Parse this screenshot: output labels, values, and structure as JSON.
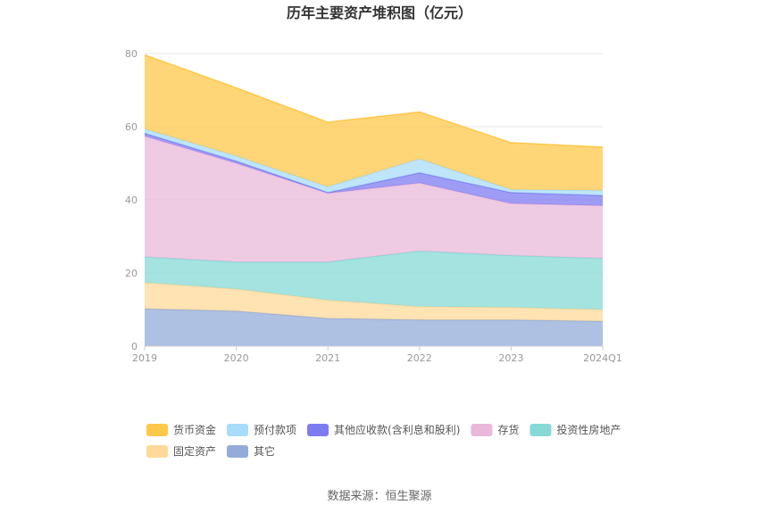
{
  "chart_data": {
    "type": "area",
    "stacked": true,
    "title": "历年主要资产堆积图（亿元）",
    "source": "数据来源：恒生聚源",
    "categories": [
      "2019",
      "2020",
      "2021",
      "2022",
      "2023",
      "2024Q1"
    ],
    "ylim": [
      0,
      80
    ],
    "yticks": [
      "0",
      "20",
      "40",
      "60",
      "80"
    ],
    "grid": true,
    "legend_position": "bottom",
    "series": [
      {
        "name": "其它",
        "color": "#93acd9",
        "values": [
          10.2,
          9.6,
          7.6,
          7.2,
          7.2,
          6.8
        ]
      },
      {
        "name": "固定资产",
        "color": "#ffd999",
        "values": [
          7.2,
          6.0,
          5.0,
          3.6,
          3.4,
          3.2
        ]
      },
      {
        "name": "投资性房地产",
        "color": "#86d9d6",
        "values": [
          7.0,
          7.4,
          10.4,
          15.2,
          14.2,
          14.0
        ]
      },
      {
        "name": "存货",
        "color": "#e9b8da",
        "values": [
          33.0,
          27.0,
          18.8,
          18.6,
          14.2,
          14.4
        ]
      },
      {
        "name": "其他应收款(含利息和股利)",
        "color": "#7d7bf0",
        "values": [
          0.8,
          0.6,
          0.2,
          2.8,
          3.0,
          2.8
        ]
      },
      {
        "name": "预付款项",
        "color": "#a8dcf8",
        "values": [
          1.2,
          1.4,
          1.6,
          3.8,
          0.8,
          1.4
        ]
      },
      {
        "name": "货币资金",
        "color": "#ffc84a",
        "values": [
          20.2,
          18.6,
          17.6,
          12.8,
          12.8,
          11.8
        ]
      }
    ],
    "legend_order": [
      "货币资金",
      "预付款项",
      "其他应收款(含利息和股利)",
      "存货",
      "投资性房地产",
      "固定资产",
      "其它"
    ]
  }
}
